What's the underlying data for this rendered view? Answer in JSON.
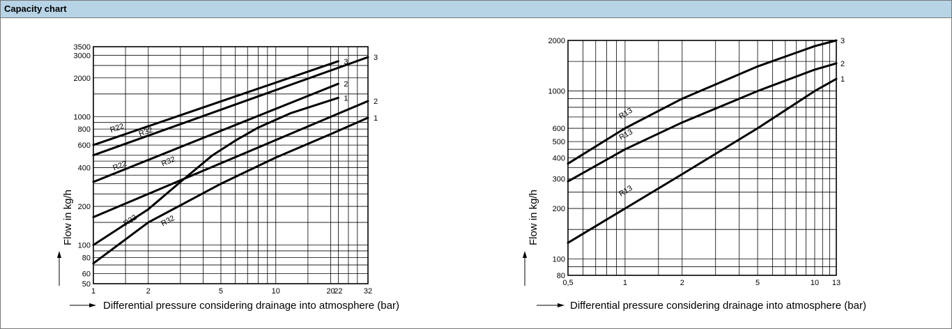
{
  "header": {
    "title": "Capacity chart"
  },
  "chart_data": [
    {
      "type": "line",
      "xscale": "log",
      "yscale": "log",
      "xlim": [
        1,
        32
      ],
      "ylim": [
        50,
        3500
      ],
      "xlabel": "Differential pressure considering drainage into atmosphere (bar)",
      "ylabel": "Flow in kg/h",
      "xticks": [
        "1",
        "2",
        "5",
        "10",
        "20",
        "22",
        "32"
      ],
      "xtick_values": [
        1,
        2,
        5,
        10,
        20,
        22,
        32
      ],
      "yticks": [
        "50",
        "60",
        "80",
        "100",
        "200",
        "400",
        "600",
        "800",
        "1000",
        "2000",
        "3000",
        "3500"
      ],
      "ytick_values": [
        50,
        60,
        80,
        100,
        200,
        400,
        600,
        800,
        1000,
        2000,
        3000,
        3500
      ],
      "grid": true,
      "series": [
        {
          "name": "R22",
          "end_label": "3",
          "x": [
            1,
            22
          ],
          "y": [
            600,
            2700
          ],
          "label_at": [
            1.25,
            750
          ]
        },
        {
          "name": "R22",
          "end_label": "2",
          "x": [
            1,
            22
          ],
          "y": [
            310,
            1800
          ],
          "label_at": [
            1.3,
            380
          ]
        },
        {
          "name": "R22",
          "end_label": "1",
          "x": [
            1,
            2,
            3,
            4.5,
            6,
            8,
            12,
            22
          ],
          "y": [
            100,
            190,
            310,
            500,
            650,
            820,
            1060,
            1400
          ],
          "label_at": [
            1.5,
            140
          ]
        },
        {
          "name": "R32",
          "end_label": "3",
          "x": [
            1,
            32
          ],
          "y": [
            500,
            2900
          ],
          "label_at": [
            1.8,
            700
          ]
        },
        {
          "name": "R32",
          "end_label": "2",
          "x": [
            1,
            32
          ],
          "y": [
            165,
            1320
          ],
          "label_at": [
            2.4,
            410
          ]
        },
        {
          "name": "R32",
          "end_label": "1",
          "x": [
            1,
            2,
            5,
            10,
            20,
            32
          ],
          "y": [
            72,
            150,
            300,
            480,
            730,
            980
          ],
          "label_at": [
            2.4,
            140
          ]
        }
      ]
    },
    {
      "type": "line",
      "xscale": "log",
      "yscale": "log",
      "xlim": [
        0.5,
        13
      ],
      "ylim": [
        80,
        2000
      ],
      "xlabel": "Differential pressure considering drainage into atmosphere (bar)",
      "ylabel": "Flow in kg/h",
      "xticks": [
        "0,5",
        "1",
        "2",
        "5",
        "10",
        "13"
      ],
      "xtick_values": [
        0.5,
        1,
        2,
        5,
        10,
        13
      ],
      "yticks": [
        "80",
        "100",
        "200",
        "300",
        "400",
        "500",
        "600",
        "1000",
        "2000"
      ],
      "ytick_values": [
        80,
        100,
        200,
        300,
        400,
        500,
        600,
        1000,
        2000
      ],
      "grid": true,
      "series": [
        {
          "name": "R13",
          "end_label": "3",
          "x": [
            0.5,
            1,
            2,
            5,
            10,
            13
          ],
          "y": [
            370,
            600,
            900,
            1400,
            1850,
            2000
          ],
          "label_at": [
            0.95,
            680
          ]
        },
        {
          "name": "R13",
          "end_label": "2",
          "x": [
            0.5,
            1,
            2,
            5,
            10,
            13
          ],
          "y": [
            290,
            450,
            650,
            1000,
            1340,
            1460
          ],
          "label_at": [
            0.95,
            510
          ]
        },
        {
          "name": "R13",
          "end_label": "1",
          "x": [
            0.5,
            1,
            2,
            5,
            10,
            13
          ],
          "y": [
            125,
            200,
            320,
            600,
            1000,
            1180
          ],
          "label_at": [
            0.95,
            235
          ]
        }
      ]
    }
  ]
}
